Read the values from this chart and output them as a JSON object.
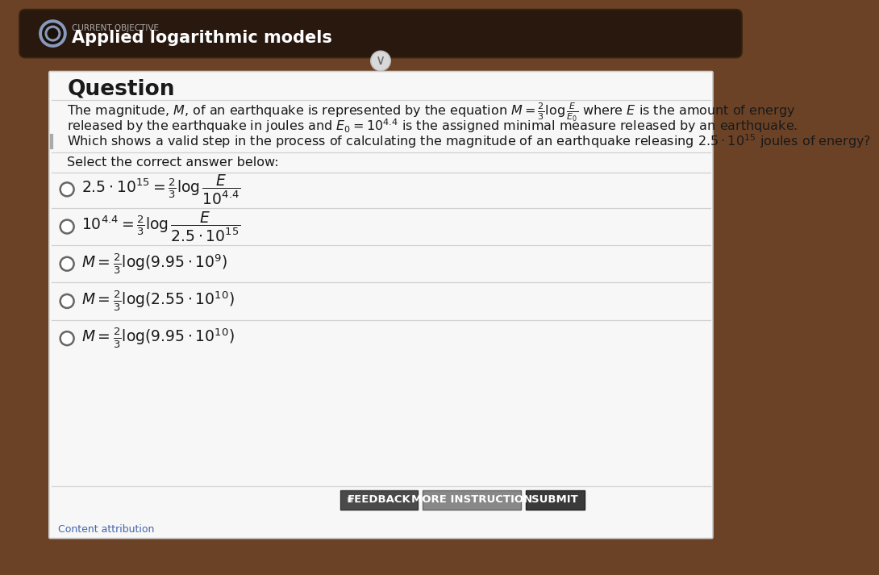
{
  "bg_outer": "#6b4226",
  "header_bg": "#2a1c10",
  "current_objective_label": "CURRENT OBJECTIVE",
  "current_objective_text": "Applied logarithmic models",
  "question_title": "Question",
  "question_body_1": "The magnitude, $M$, of an earthquake is represented by the equation $M = \\frac{2}{3}\\log\\frac{E}{E_0}$ where $E$ is the amount of energy",
  "question_body_2": "released by the earthquake in joules and $E_0 = 10^{4.4}$ is the assigned minimal measure released by an earthquake.",
  "question_body_3": "Which shows a valid step in the process of calculating the magnitude of an earthquake releasing $2.5 \\cdot 10^{15}$ joules of energy?",
  "select_label": "Select the correct answer below:",
  "options": [
    "$2.5 \\cdot 10^{15} = \\frac{2}{3}\\log\\dfrac{E}{10^{4.4}}$",
    "$10^{4.4} = \\frac{2}{3}\\log\\dfrac{E}{2.5 \\cdot 10^{15}}$",
    "$M = \\frac{2}{3}\\log(9.95 \\cdot 10^{9})$",
    "$M = \\frac{2}{3}\\log(2.55 \\cdot 10^{10})$",
    "$M = \\frac{2}{3}\\log(9.95 \\cdot 10^{10})$"
  ],
  "btn_feedback_text": "FEEDBACK",
  "btn_instruction_text": "MORE INSTRUCTION",
  "btn_submit_text": "SUBMIT",
  "content_attribution": "Content attribution",
  "divider_color": "#d0d0d0",
  "text_dark": "#1a1a1a",
  "white_area_bg": "#f7f7f7",
  "white_area_edge": "#cccccc"
}
